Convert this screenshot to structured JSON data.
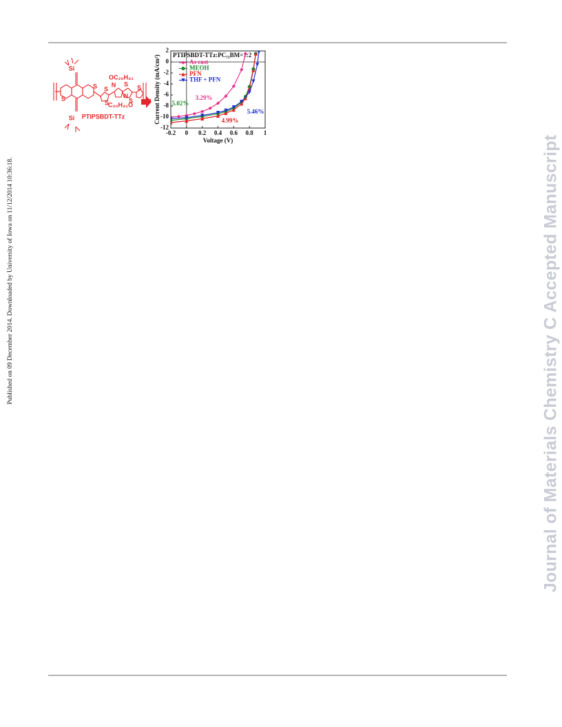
{
  "sidebar_text": "Published on 09 December 2014. Downloaded by University of Iowa on 11/12/2014 10:36:18.",
  "watermark": "Journal of Materials Chemistry C Accepted Manuscript",
  "structure": {
    "labels": [
      "Si",
      "Si",
      "OC₂₀H₄₁",
      "N",
      "S",
      "S",
      "N",
      "C₂₀H₄₁O",
      "S",
      "S",
      "S",
      "S",
      "S",
      "n"
    ],
    "name": "PTIPSBDT-TTz"
  },
  "chart_data": {
    "type": "line",
    "title": "PTIPSBDT-TTz:PC₇₁BM=1:2",
    "xlabel": "Voltage (V)",
    "ylabel": "Current Density (mA/cm²)",
    "xlim": [
      -0.2,
      1
    ],
    "xticks": [
      -0.2,
      0,
      0.2,
      0.4,
      0.6,
      0.8,
      1
    ],
    "ylim": [
      -12,
      2
    ],
    "yticks": [
      -12,
      -10,
      -8,
      -6,
      -4,
      -2,
      0,
      2
    ],
    "legend": "upper left",
    "series": [
      {
        "name": "As cast",
        "color": "#e8308a",
        "marker": "diamond",
        "x": [
          -0.2,
          -0.1,
          0,
          0.1,
          0.2,
          0.3,
          0.4,
          0.5,
          0.6,
          0.7,
          0.75
        ],
        "values": [
          -10.0,
          -9.9,
          -9.7,
          -9.4,
          -9.0,
          -8.4,
          -7.5,
          -6.2,
          -4.4,
          -1.4,
          1.5
        ]
      },
      {
        "name": "MEOH",
        "color": "#1e8a2e",
        "marker": "circle",
        "x": [
          -0.2,
          0,
          0.2,
          0.4,
          0.5,
          0.6,
          0.7,
          0.75,
          0.8,
          0.85,
          0.88
        ],
        "values": [
          -10.6,
          -10.3,
          -9.9,
          -9.4,
          -9.0,
          -8.4,
          -7.3,
          -6.3,
          -4.5,
          -1.3,
          1.5
        ]
      },
      {
        "name": "PFN",
        "color": "#e02020",
        "marker": "triangle",
        "x": [
          -0.2,
          0,
          0.2,
          0.4,
          0.5,
          0.6,
          0.7,
          0.75,
          0.8,
          0.85,
          0.88
        ],
        "values": [
          -11.0,
          -10.7,
          -10.3,
          -9.8,
          -9.3,
          -8.7,
          -7.6,
          -6.6,
          -4.8,
          -1.5,
          1.5
        ]
      },
      {
        "name": "THF + PFN",
        "color": "#1f2fd0",
        "marker": "down-triangle",
        "x": [
          -0.2,
          0,
          0.2,
          0.4,
          0.5,
          0.6,
          0.7,
          0.8,
          0.85,
          0.9,
          0.92
        ],
        "values": [
          -10.3,
          -10.1,
          -9.7,
          -9.2,
          -8.8,
          -8.2,
          -7.2,
          -5.5,
          -3.5,
          -0.5,
          1.8
        ]
      }
    ],
    "annotations": [
      {
        "text": "3.29%",
        "color": "#e8308a"
      },
      {
        "text": "5.02%",
        "color": "#1e8a2e"
      },
      {
        "text": "4.99%",
        "color": "#e02020"
      },
      {
        "text": "5.46%",
        "color": "#1f2fd0"
      }
    ]
  }
}
